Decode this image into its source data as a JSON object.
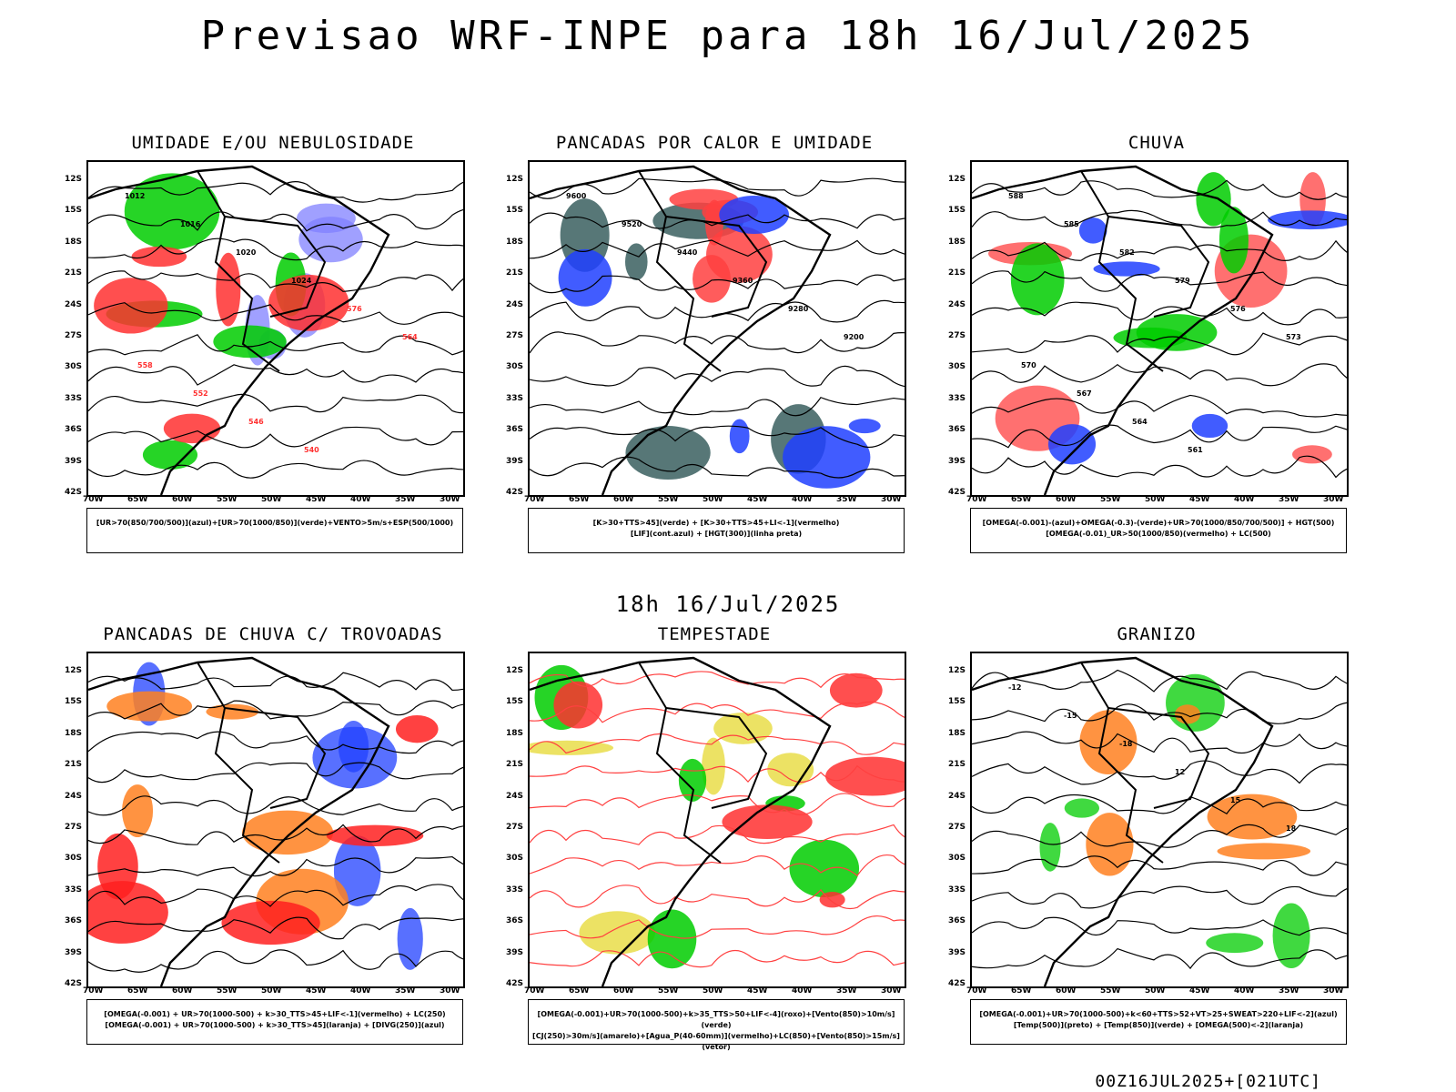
{
  "title": "Previsao WRF-INPE  para 18h 16/Jul/2025",
  "mid_title": "18h 16/Jul/2025",
  "footer": "00Z16JUL2025+[021UTC]",
  "lat_labels": [
    "12S",
    "15S",
    "18S",
    "21S",
    "24S",
    "27S",
    "30S",
    "33S",
    "36S",
    "39S",
    "42S"
  ],
  "lon_labels": [
    "70W",
    "65W",
    "60W",
    "55W",
    "50W",
    "45W",
    "40W",
    "35W",
    "30W"
  ],
  "panels": [
    {
      "title": "UMIDADE E/OU NEBULOSIDADE",
      "legend": [
        "[UR>70(850/700/500)](azul)+[UR>70(1000/850)](verde)+VENTO>5m/s+ESP(500/1000)"
      ],
      "colors": [
        "#8080ff",
        "#00cc00",
        "#ff3030"
      ],
      "labels": [
        "1012",
        "1016",
        "1020",
        "1024",
        "576",
        "564",
        "558",
        "552",
        "546",
        "540"
      ]
    },
    {
      "title": "PANCADAS POR CALOR E UMIDADE",
      "legend": [
        "[K>30+TTS>45](verde) + [K>30+TTS>45+LI<-1](vermelho)",
        "[LIF](cont.azul) + [HGT(300)](linha preta)"
      ],
      "colors": [
        "#1f4a4a",
        "#ff4040",
        "#2040ff"
      ],
      "labels": [
        "9600",
        "9520",
        "9440",
        "9360",
        "9280",
        "9200"
      ]
    },
    {
      "title": "CHUVA",
      "legend": [
        "[OMEGA(-0.001)-(azul)+OMEGA(-0.3)-(verde)+UR>70(1000/850/700/500)] + HGT(500)",
        "[OMEGA(-0.01)_UR>50(1000/850)(vermelho) + LC(500)"
      ],
      "colors": [
        "#ff4040",
        "#00cc00",
        "#2040ff"
      ],
      "labels": [
        "588",
        "585",
        "582",
        "579",
        "576",
        "573",
        "570",
        "567",
        "564",
        "561"
      ]
    },
    {
      "title": "PANCADAS DE CHUVA C/ TROVOADAS",
      "legend": [
        "[OMEGA(-0.001) + UR>70(1000-500) + k>30_TTS>45+LIF<-1](vermelho) + LC(250)",
        "[OMEGA(-0.001) + UR>70(1000-500) + k>30_TTS>45](laranja) + [DIVG(250)](azul)"
      ],
      "colors": [
        "#2040ff",
        "#ff8020",
        "#ff2020"
      ],
      "labels": []
    },
    {
      "title": "TEMPESTADE",
      "legend": [
        "[OMEGA(-0.001)+UR>70(1000-500)+k>35_TTS>50+LIF<-4](roxo)+[Vento(850)>10m/s](verde)",
        "[CJ(250)>30m/s](amarelo)+[Agua_P(40-60mm)](vermelho)+LC(850)+[Vento(850)>15m/s](vetor)"
      ],
      "colors": [
        "#e6d830",
        "#00cc00",
        "#ff3030"
      ],
      "labels": []
    },
    {
      "title": "GRANIZO",
      "legend": [
        "[OMEGA(-0.001)+UR>70(1000-500)+k<60+TTS>52+VT>25+SWEAT>220+LIF<-2](azul)",
        "[Temp(500)](preto) + [Temp(850)](verde) + [OMEGA(500)<-2](laranja)"
      ],
      "colors": [
        "#00cc00",
        "#ff8020",
        "#000000"
      ],
      "labels": [
        "-12",
        "-15",
        "-18",
        "12",
        "15",
        "18"
      ]
    }
  ]
}
